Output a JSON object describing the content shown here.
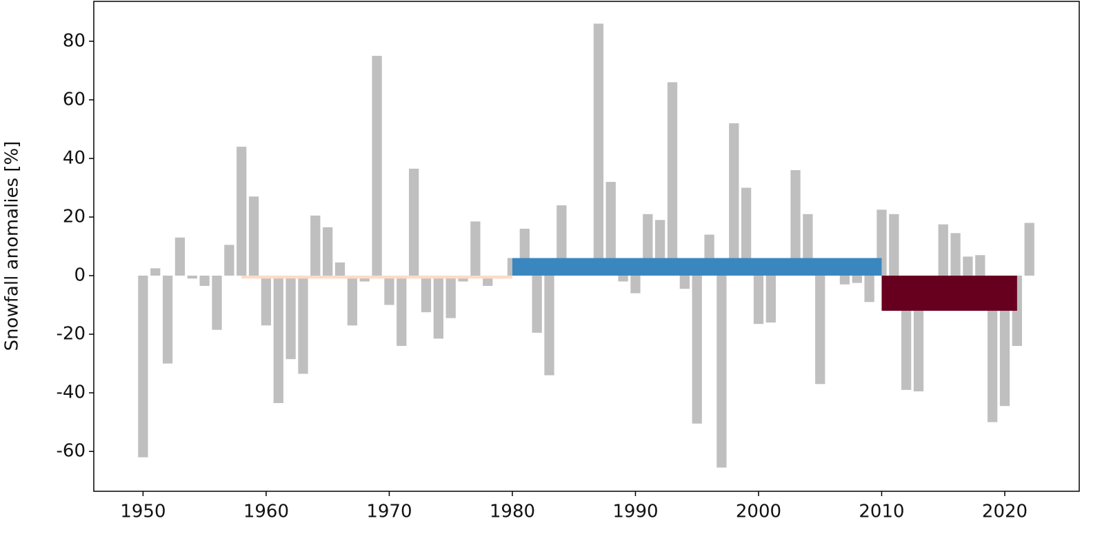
{
  "chart_data": {
    "type": "bar",
    "y_label": "Snowfall anomalies [%]",
    "x": [
      1950,
      1951,
      1952,
      1953,
      1954,
      1955,
      1956,
      1957,
      1958,
      1959,
      1960,
      1961,
      1962,
      1963,
      1964,
      1965,
      1966,
      1967,
      1968,
      1969,
      1970,
      1971,
      1972,
      1973,
      1974,
      1975,
      1976,
      1977,
      1978,
      1979,
      1980,
      1981,
      1982,
      1983,
      1984,
      1985,
      1986,
      1987,
      1988,
      1989,
      1990,
      1991,
      1992,
      1993,
      1994,
      1995,
      1996,
      1997,
      1998,
      1999,
      2000,
      2001,
      2002,
      2003,
      2004,
      2005,
      2006,
      2007,
      2008,
      2009,
      2010,
      2011,
      2012,
      2013,
      2014,
      2015,
      2016,
      2017,
      2018,
      2019,
      2020,
      2021,
      2022
    ],
    "values": [
      -62,
      2.5,
      -30,
      13,
      -1,
      -3.5,
      -18.5,
      10.5,
      44,
      27,
      -17,
      -43.5,
      -28.5,
      -33.5,
      20.5,
      16.5,
      4.5,
      -17,
      -2,
      75,
      -10,
      -24,
      36.5,
      -12.5,
      -21.5,
      -14.5,
      -2,
      18.5,
      -3.5,
      -1,
      6,
      16,
      -19.5,
      -34,
      24,
      3,
      3,
      86,
      32,
      -2,
      -6,
      21,
      19,
      66,
      -4.5,
      -50.5,
      14,
      -65.5,
      52,
      30,
      -16.5,
      -16,
      2,
      36,
      21,
      -37,
      4,
      -3,
      -2.5,
      -9,
      22.5,
      21,
      -39,
      -39.5,
      -5,
      17.5,
      14.5,
      6.5,
      7,
      -50,
      -44.5,
      -24,
      18
    ],
    "color": "#bfbfbf",
    "periods": [
      {
        "start": 1958,
        "end": 1980,
        "value": -1,
        "color": "#fddbc7"
      },
      {
        "start": 1980,
        "end": 2010,
        "value": 6,
        "color": "#3a87c0"
      },
      {
        "start": 2010,
        "end": 2021,
        "value": -12,
        "color": "#67001f"
      }
    ],
    "xlim": [
      1946,
      2026.05
    ],
    "ylim": [
      -73.6,
      93.6
    ],
    "xticks": [
      1950,
      1960,
      1970,
      1980,
      1990,
      2000,
      2010,
      2020
    ],
    "yticks": [
      -60,
      -40,
      -20,
      0,
      20,
      40,
      60,
      80
    ]
  }
}
